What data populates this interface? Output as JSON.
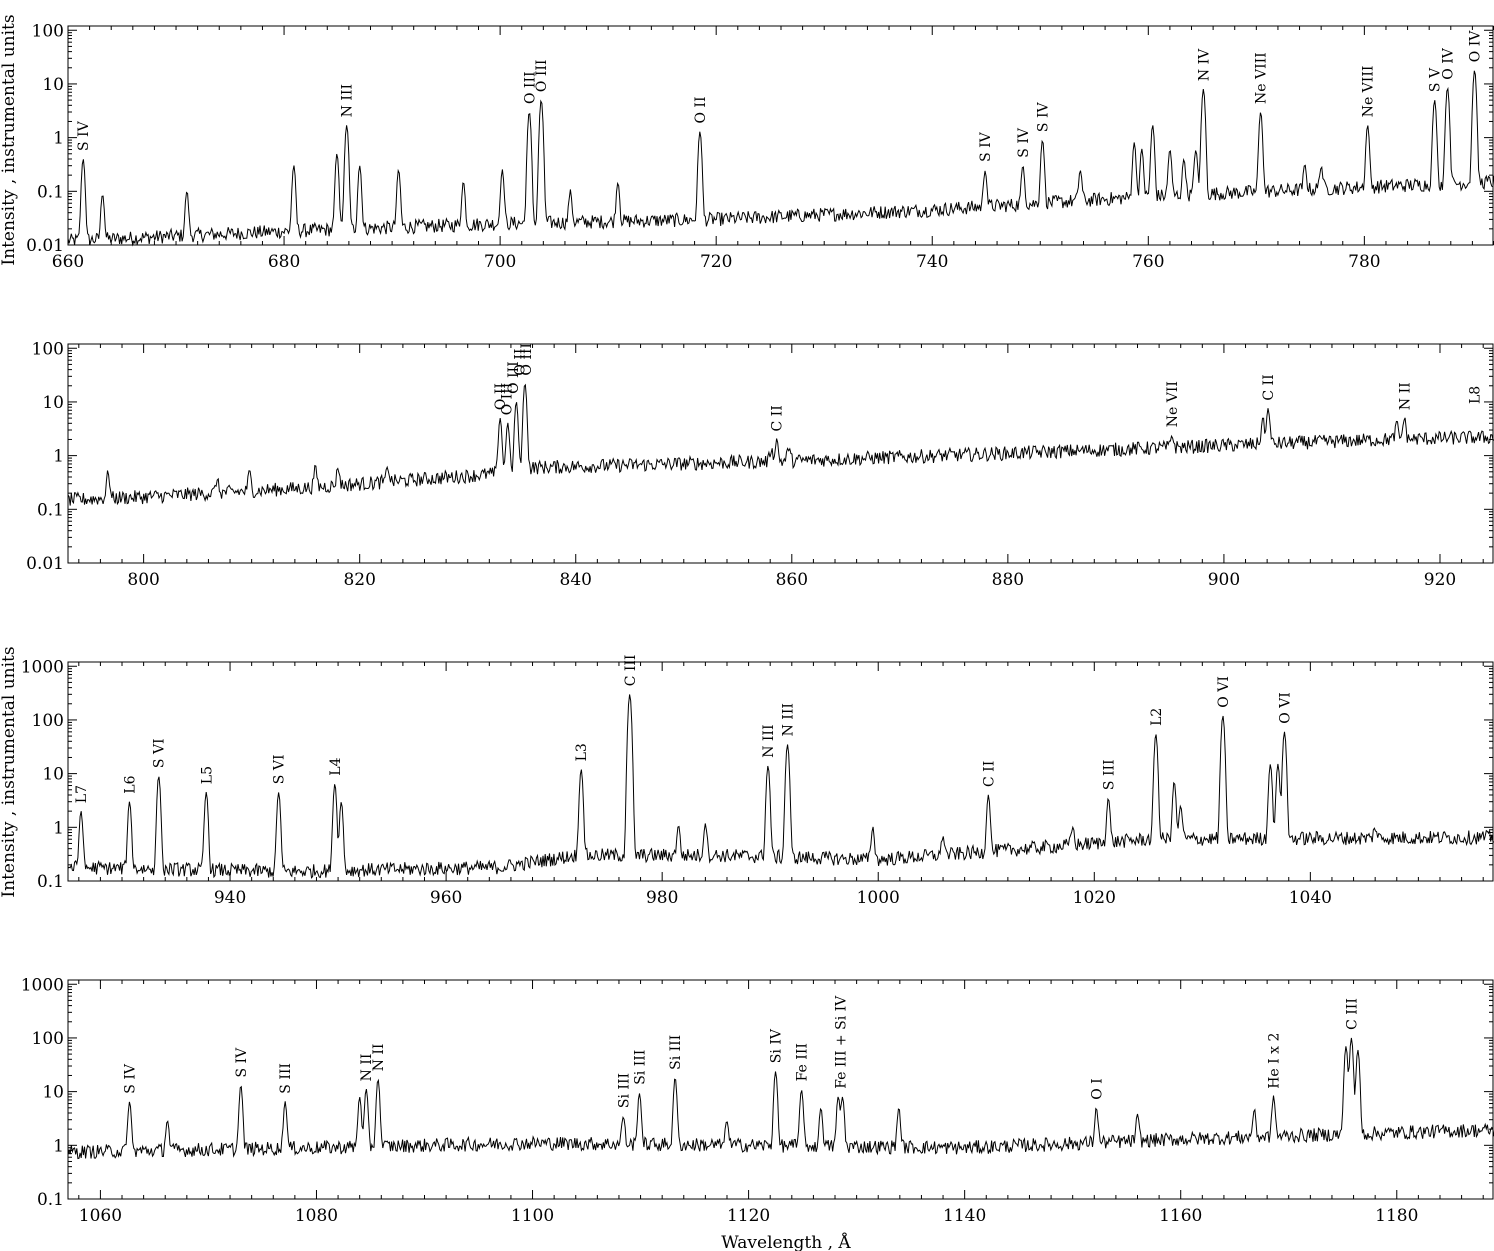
{
  "figure": {
    "ylabel": "Intensity , instrumental units",
    "xlabel": "Wavelength , Å",
    "line_color": "#000000",
    "background": "#ffffff"
  },
  "chart_data": [
    {
      "type": "line",
      "xlim": [
        660,
        792
      ],
      "ylim": [
        0.01,
        120
      ],
      "yscale": "log",
      "grid": false,
      "xticks": [
        660,
        680,
        700,
        720,
        740,
        760,
        780
      ],
      "yticks": [
        {
          "v": 0.01,
          "t": "0.01"
        },
        {
          "v": 0.1,
          "t": "0.1"
        },
        {
          "v": 1,
          "t": "1"
        },
        {
          "v": 10,
          "t": "10"
        },
        {
          "v": 100,
          "t": "100"
        }
      ],
      "baseline": [
        [
          660,
          0.012
        ],
        [
          680,
          0.018
        ],
        [
          700,
          0.025
        ],
        [
          720,
          0.03
        ],
        [
          740,
          0.045
        ],
        [
          760,
          0.08
        ],
        [
          780,
          0.12
        ],
        [
          792,
          0.15
        ]
      ],
      "peaks": [
        [
          661.4,
          0.4
        ],
        [
          663.2,
          0.09
        ],
        [
          671.0,
          0.1
        ],
        [
          680.9,
          0.3
        ],
        [
          684.9,
          0.5
        ],
        [
          685.8,
          1.7
        ],
        [
          687.0,
          0.3
        ],
        [
          690.6,
          0.25
        ],
        [
          696.6,
          0.15
        ],
        [
          700.2,
          0.25
        ],
        [
          702.7,
          3.0
        ],
        [
          703.8,
          5.0
        ],
        [
          706.5,
          0.1
        ],
        [
          710.9,
          0.15
        ],
        [
          718.5,
          1.3
        ],
        [
          744.9,
          0.25
        ],
        [
          748.4,
          0.3
        ],
        [
          750.2,
          0.9
        ],
        [
          753.7,
          0.25
        ],
        [
          758.7,
          0.8
        ],
        [
          759.4,
          0.6
        ],
        [
          760.4,
          1.7
        ],
        [
          762.0,
          0.6
        ],
        [
          763.3,
          0.4
        ],
        [
          764.4,
          0.6
        ],
        [
          765.1,
          8.0
        ],
        [
          770.4,
          3.0
        ],
        [
          774.5,
          0.3
        ],
        [
          776.0,
          0.3
        ],
        [
          780.3,
          1.7
        ],
        [
          786.5,
          5.0
        ],
        [
          787.7,
          8.5
        ],
        [
          790.2,
          18.0
        ]
      ],
      "labels": [
        {
          "x": 661.4,
          "text": "S IV"
        },
        {
          "x": 685.8,
          "text": "N III"
        },
        {
          "x": 702.7,
          "text": "O III"
        },
        {
          "x": 703.8,
          "text": "O III"
        },
        {
          "x": 718.5,
          "text": "O II"
        },
        {
          "x": 744.9,
          "text": "S IV"
        },
        {
          "x": 748.4,
          "text": "S IV"
        },
        {
          "x": 750.2,
          "text": "S IV"
        },
        {
          "x": 765.1,
          "text": "N IV"
        },
        {
          "x": 770.4,
          "text": "Ne VIII"
        },
        {
          "x": 780.3,
          "text": "Ne VIII"
        },
        {
          "x": 786.5,
          "text": "S V"
        },
        {
          "x": 787.7,
          "text": "O IV"
        },
        {
          "x": 790.2,
          "text": "O IV"
        }
      ]
    },
    {
      "type": "line",
      "xlim": [
        793,
        925
      ],
      "ylim": [
        0.01,
        120
      ],
      "yscale": "log",
      "grid": false,
      "xticks": [
        800,
        820,
        840,
        860,
        880,
        900,
        920
      ],
      "yticks": [
        {
          "v": 0.01,
          "t": "0.01"
        },
        {
          "v": 0.1,
          "t": "0.1"
        },
        {
          "v": 1,
          "t": "1"
        },
        {
          "v": 10,
          "t": "10"
        },
        {
          "v": 100,
          "t": "100"
        }
      ],
      "baseline": [
        [
          793,
          0.15
        ],
        [
          800,
          0.17
        ],
        [
          815,
          0.25
        ],
        [
          832,
          0.45
        ],
        [
          836,
          0.6
        ],
        [
          860,
          0.8
        ],
        [
          890,
          1.3
        ],
        [
          915,
          2.0
        ],
        [
          925,
          2.2
        ]
      ],
      "peaks": [
        [
          796.7,
          0.5
        ],
        [
          806.8,
          0.35
        ],
        [
          809.8,
          0.5
        ],
        [
          815.9,
          0.6
        ],
        [
          818.0,
          0.6
        ],
        [
          822.6,
          0.6
        ],
        [
          833.0,
          5.0
        ],
        [
          833.7,
          4.0
        ],
        [
          834.5,
          10.0
        ],
        [
          835.3,
          22.0
        ],
        [
          858.1,
          1.3
        ],
        [
          858.6,
          2.0
        ],
        [
          859.7,
          1.4
        ],
        [
          895.2,
          2.4
        ],
        [
          903.6,
          5.0
        ],
        [
          904.1,
          7.5
        ],
        [
          916.0,
          4.0
        ],
        [
          916.7,
          5.0
        ]
      ],
      "labels": [
        {
          "x": 833.0,
          "text": "O II"
        },
        {
          "x": 833.6,
          "text": "O III"
        },
        {
          "x": 834.2,
          "text": "O III"
        },
        {
          "x": 834.8,
          "text": "O II"
        },
        {
          "x": 835.4,
          "text": "O III"
        },
        {
          "x": 858.6,
          "text": "C II"
        },
        {
          "x": 895.2,
          "text": "Ne VII"
        },
        {
          "x": 904.1,
          "text": "C II"
        },
        {
          "x": 916.7,
          "text": "N II"
        },
        {
          "x": 923.2,
          "text": "L8"
        }
      ]
    },
    {
      "type": "line",
      "xlim": [
        925,
        1057
      ],
      "ylim": [
        0.1,
        1200
      ],
      "yscale": "log",
      "grid": false,
      "xticks": [
        940,
        960,
        980,
        1000,
        1020,
        1040
      ],
      "yticks": [
        {
          "v": 0.1,
          "t": "0.1"
        },
        {
          "v": 1,
          "t": "1"
        },
        {
          "v": 10,
          "t": "10"
        },
        {
          "v": 100,
          "t": "100"
        },
        {
          "v": 1000,
          "t": "1000"
        }
      ],
      "baseline": [
        [
          925,
          0.18
        ],
        [
          945,
          0.15
        ],
        [
          965,
          0.18
        ],
        [
          972,
          0.3
        ],
        [
          985,
          0.3
        ],
        [
          1000,
          0.25
        ],
        [
          1010,
          0.35
        ],
        [
          1025,
          0.6
        ],
        [
          1057,
          0.65
        ]
      ],
      "peaks": [
        [
          926.2,
          2.0
        ],
        [
          930.7,
          3.0
        ],
        [
          933.4,
          9.0
        ],
        [
          937.8,
          4.5
        ],
        [
          944.5,
          4.5
        ],
        [
          949.7,
          6.5
        ],
        [
          950.3,
          3.0
        ],
        [
          972.5,
          12.0
        ],
        [
          977.0,
          300.0
        ],
        [
          981.5,
          1.1
        ],
        [
          984.0,
          1.2
        ],
        [
          989.8,
          14.0
        ],
        [
          991.6,
          35.0
        ],
        [
          999.5,
          1.0
        ],
        [
          1006.0,
          0.7
        ],
        [
          1010.2,
          4.0
        ],
        [
          1018.0,
          1.0
        ],
        [
          1021.3,
          3.5
        ],
        [
          1025.7,
          55.0
        ],
        [
          1027.4,
          7.0
        ],
        [
          1028.0,
          2.5
        ],
        [
          1031.9,
          120.0
        ],
        [
          1036.3,
          15.0
        ],
        [
          1037.0,
          15.0
        ],
        [
          1037.6,
          60.0
        ],
        [
          1046.0,
          1.0
        ]
      ],
      "labels": [
        {
          "x": 926.2,
          "text": "L7"
        },
        {
          "x": 930.7,
          "text": "L6"
        },
        {
          "x": 933.4,
          "text": "S VI"
        },
        {
          "x": 937.8,
          "text": "L5"
        },
        {
          "x": 944.5,
          "text": "S VI"
        },
        {
          "x": 949.7,
          "text": "L4"
        },
        {
          "x": 972.5,
          "text": "L3"
        },
        {
          "x": 977.0,
          "text": "C III"
        },
        {
          "x": 989.8,
          "text": "N III"
        },
        {
          "x": 991.6,
          "text": "N III"
        },
        {
          "x": 1010.2,
          "text": "C II"
        },
        {
          "x": 1021.3,
          "text": "S III"
        },
        {
          "x": 1025.7,
          "text": "L2"
        },
        {
          "x": 1031.9,
          "text": "O VI"
        },
        {
          "x": 1037.6,
          "text": "O VI"
        }
      ]
    },
    {
      "type": "line",
      "xlim": [
        1057,
        1189
      ],
      "ylim": [
        0.1,
        1200
      ],
      "yscale": "log",
      "grid": false,
      "xticks": [
        1060,
        1080,
        1100,
        1120,
        1140,
        1160,
        1180
      ],
      "yticks": [
        {
          "v": 0.1,
          "t": "0.1"
        },
        {
          "v": 1,
          "t": "1"
        },
        {
          "v": 10,
          "t": "10"
        },
        {
          "v": 100,
          "t": "100"
        },
        {
          "v": 1000,
          "t": "1000"
        }
      ],
      "baseline": [
        [
          1057,
          0.75
        ],
        [
          1080,
          0.9
        ],
        [
          1100,
          1.1
        ],
        [
          1120,
          1.0
        ],
        [
          1140,
          0.9
        ],
        [
          1160,
          1.3
        ],
        [
          1187,
          1.9
        ]
      ],
      "peaks": [
        [
          1062.7,
          6.5
        ],
        [
          1066.2,
          3.0
        ],
        [
          1073.0,
          13.0
        ],
        [
          1077.1,
          6.5
        ],
        [
          1084.0,
          8.0
        ],
        [
          1084.6,
          11.0
        ],
        [
          1085.7,
          17.0
        ],
        [
          1108.4,
          3.5
        ],
        [
          1109.9,
          9.5
        ],
        [
          1113.2,
          18.0
        ],
        [
          1118.0,
          3.0
        ],
        [
          1122.5,
          24.0
        ],
        [
          1124.9,
          11.0
        ],
        [
          1126.7,
          5.0
        ],
        [
          1128.3,
          8.0
        ],
        [
          1128.7,
          8.0
        ],
        [
          1133.9,
          5.0
        ],
        [
          1152.2,
          5.0
        ],
        [
          1156.0,
          3.5
        ],
        [
          1166.8,
          4.5
        ],
        [
          1168.6,
          8.0
        ],
        [
          1175.3,
          70.0
        ],
        [
          1175.8,
          100.0
        ],
        [
          1176.4,
          60.0
        ]
      ],
      "labels": [
        {
          "x": 1062.7,
          "text": "S IV"
        },
        {
          "x": 1073.0,
          "text": "S IV"
        },
        {
          "x": 1077.1,
          "text": "S III"
        },
        {
          "x": 1084.6,
          "text": "N II"
        },
        {
          "x": 1085.7,
          "text": "N II"
        },
        {
          "x": 1108.4,
          "text": "Si III"
        },
        {
          "x": 1109.9,
          "text": "Si III"
        },
        {
          "x": 1113.2,
          "text": "Si III"
        },
        {
          "x": 1122.5,
          "text": "Si IV"
        },
        {
          "x": 1124.9,
          "text": "Fe III"
        },
        {
          "x": 1128.5,
          "text": "Fe III + Si IV"
        },
        {
          "x": 1152.2,
          "text": "O I"
        },
        {
          "x": 1168.6,
          "text": "He I x 2"
        },
        {
          "x": 1175.8,
          "text": "C III"
        }
      ]
    }
  ]
}
